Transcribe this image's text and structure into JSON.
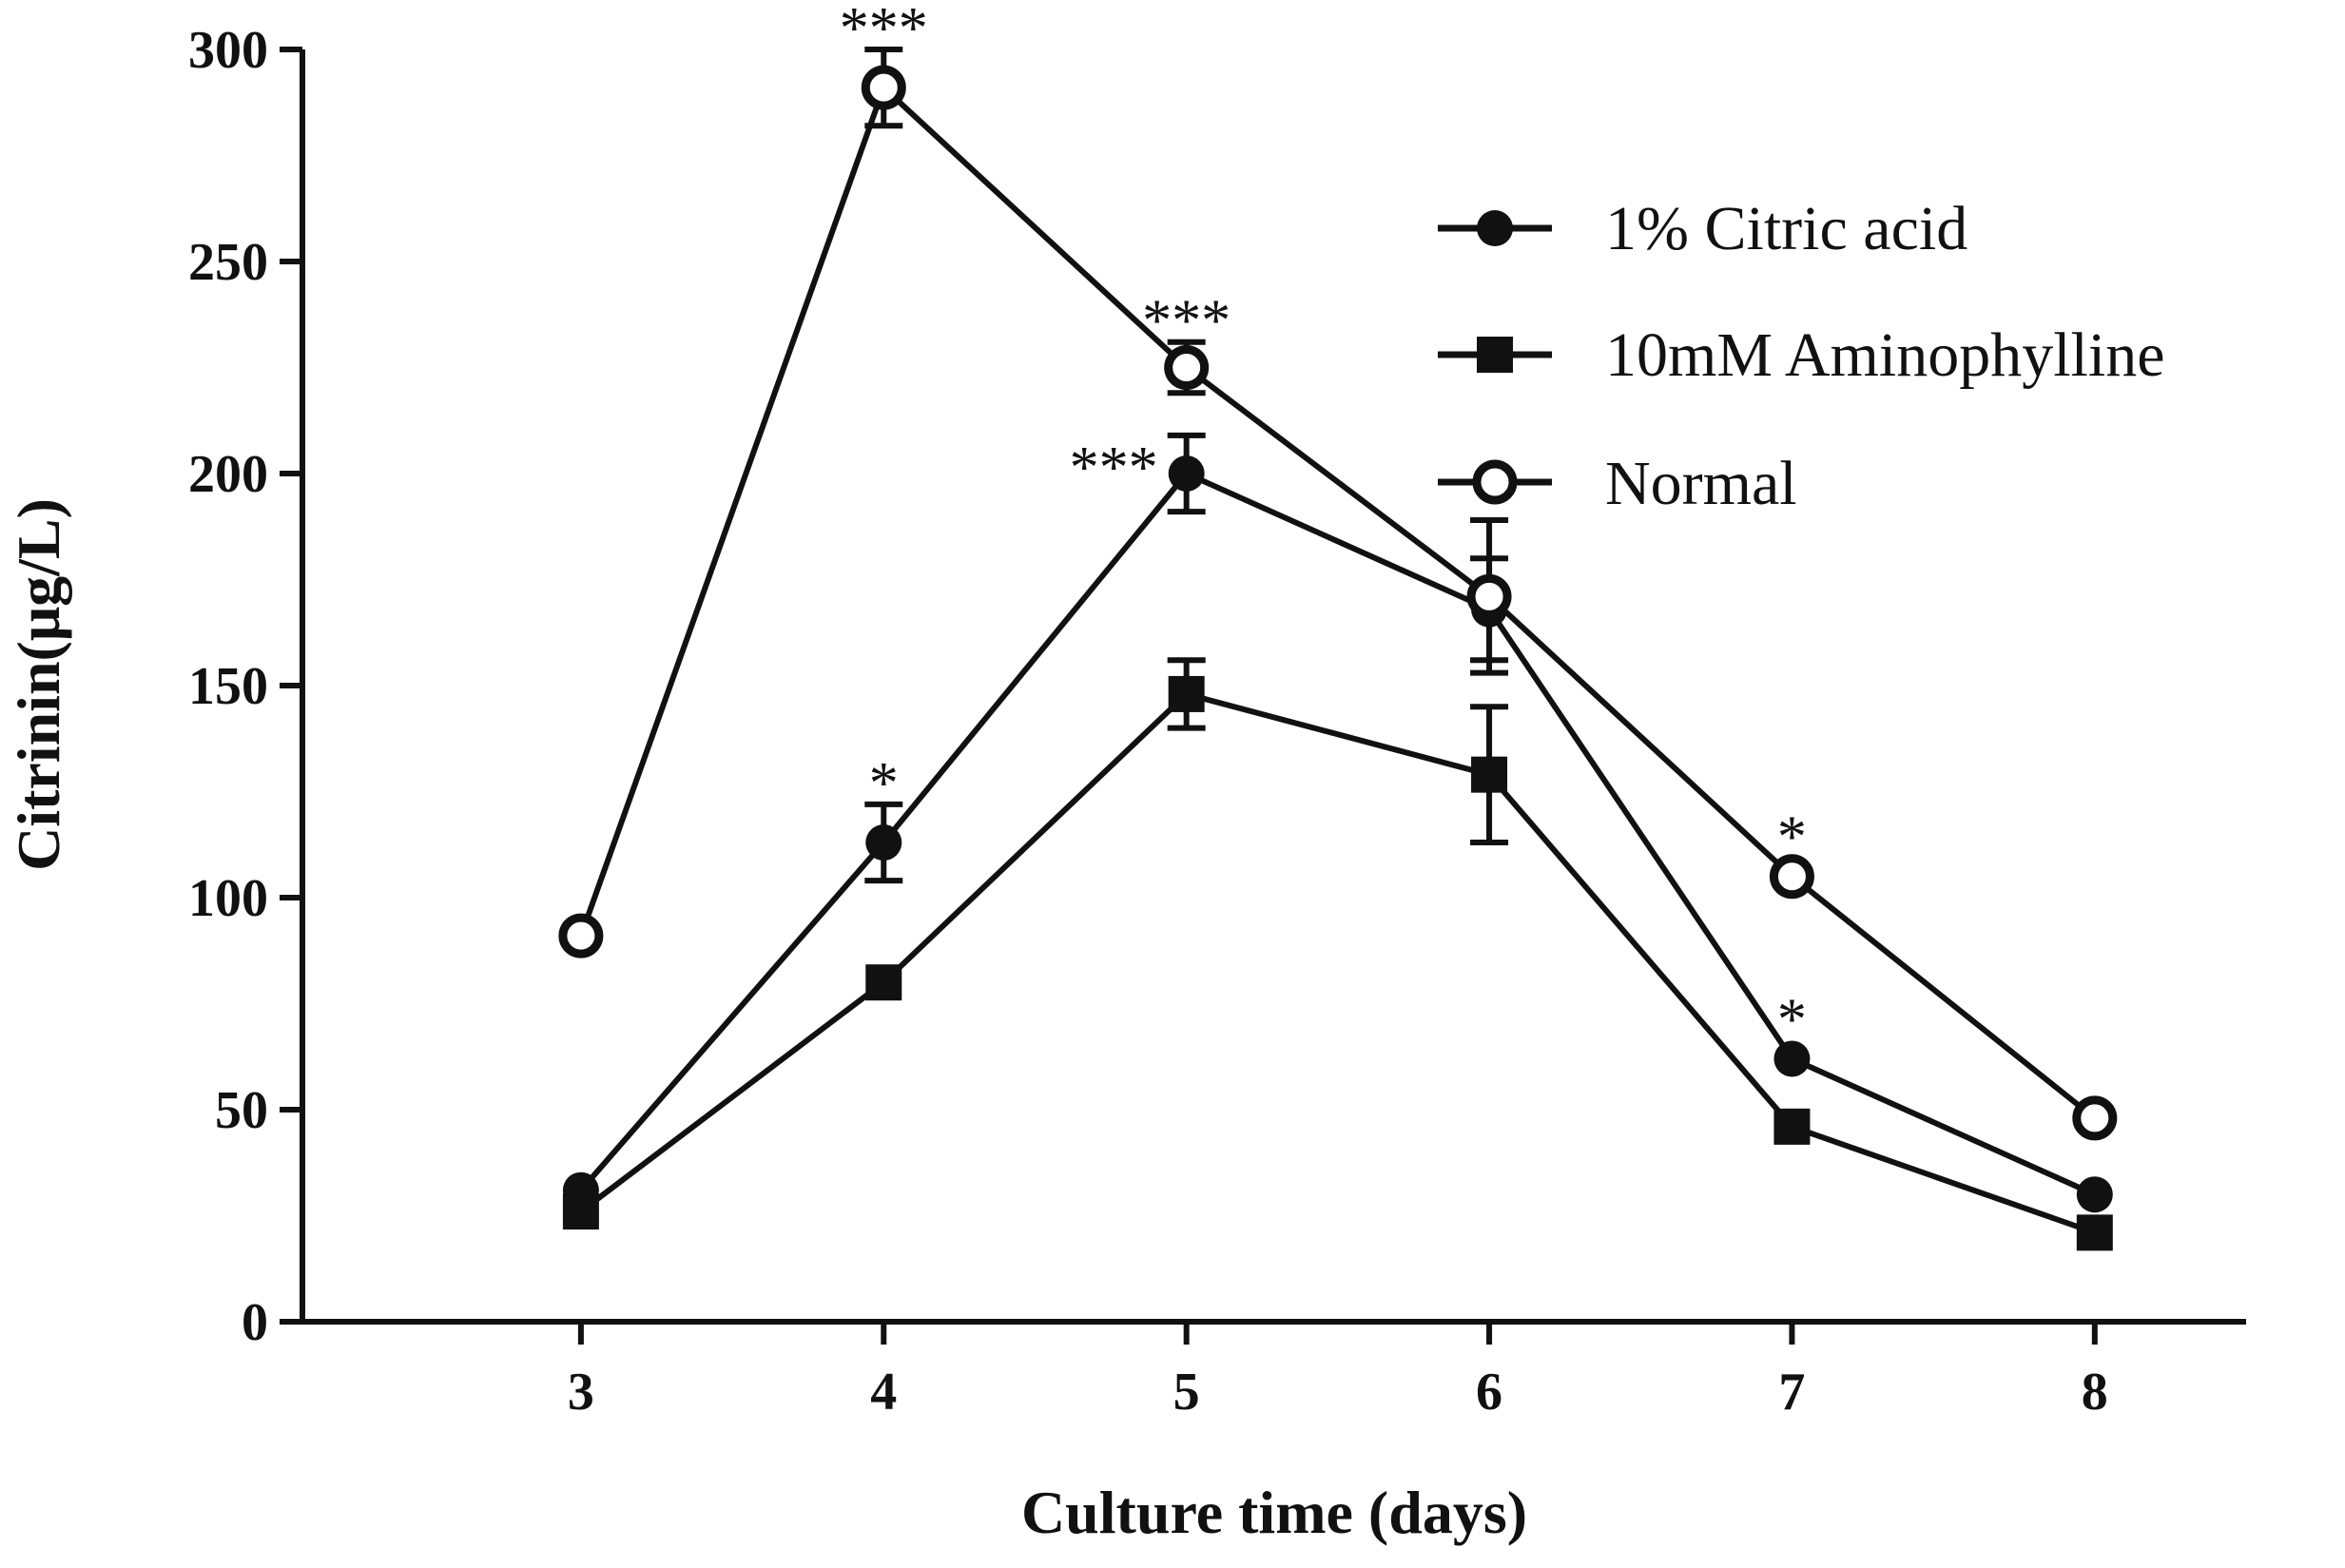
{
  "chart_data": {
    "type": "line",
    "xlabel": "Culture time (days)",
    "ylabel": "Citrinin(μg/L)",
    "x": [
      3,
      4,
      5,
      6,
      7,
      8
    ],
    "xlim": [
      2.08,
      8.5
    ],
    "ylim": [
      0,
      300
    ],
    "yticks": [
      0,
      50,
      100,
      150,
      200,
      250,
      300
    ],
    "xticks": [
      3,
      4,
      5,
      6,
      7,
      8
    ],
    "legend_position": "top-right",
    "series": [
      {
        "name": "1% Citric acid",
        "marker": "filled-circle",
        "values": [
          31,
          113,
          200,
          168,
          62,
          30
        ],
        "errors": [
          0,
          9,
          9,
          12,
          0,
          0
        ],
        "annotations": [
          "",
          "*",
          "***",
          "",
          "*",
          ""
        ]
      },
      {
        "name": "10mM Aminophylline",
        "marker": "filled-square",
        "values": [
          26,
          80,
          148,
          129,
          46,
          21
        ],
        "errors": [
          0,
          0,
          8,
          16,
          0,
          0
        ],
        "annotations": [
          "",
          "",
          "",
          "",
          "",
          ""
        ]
      },
      {
        "name": "Normal",
        "marker": "open-circle",
        "values": [
          91,
          291,
          225,
          171,
          105,
          48
        ],
        "errors": [
          0,
          9,
          6,
          18,
          0,
          0
        ],
        "annotations": [
          "",
          "***",
          "***",
          "",
          "*",
          ""
        ]
      }
    ]
  }
}
